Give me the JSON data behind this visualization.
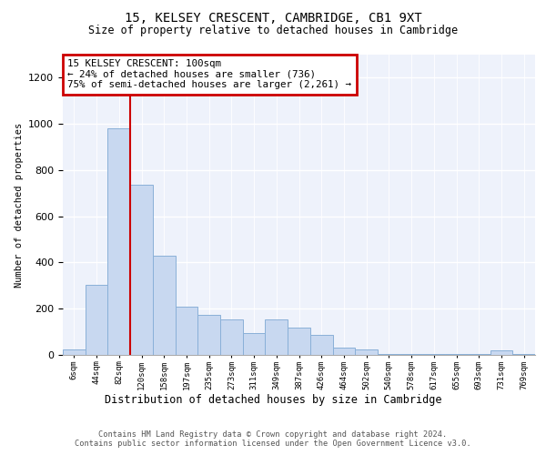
{
  "title": "15, KELSEY CRESCENT, CAMBRIDGE, CB1 9XT",
  "subtitle": "Size of property relative to detached houses in Cambridge",
  "xlabel": "Distribution of detached houses by size in Cambridge",
  "ylabel": "Number of detached properties",
  "bar_color": "#c8d8f0",
  "bar_edge_color": "#8ab0d8",
  "vline_color": "#cc0000",
  "vline_x_idx": 2,
  "annotation_text": "15 KELSEY CRESCENT: 100sqm\n← 24% of detached houses are smaller (736)\n75% of semi-detached houses are larger (2,261) →",
  "annotation_edge_color": "#cc0000",
  "categories": [
    "6sqm",
    "44sqm",
    "82sqm",
    "120sqm",
    "158sqm",
    "197sqm",
    "235sqm",
    "273sqm",
    "311sqm",
    "349sqm",
    "387sqm",
    "426sqm",
    "464sqm",
    "502sqm",
    "540sqm",
    "578sqm",
    "617sqm",
    "655sqm",
    "693sqm",
    "731sqm",
    "769sqm"
  ],
  "values": [
    22,
    305,
    980,
    735,
    430,
    210,
    175,
    155,
    95,
    155,
    120,
    88,
    30,
    22,
    5,
    3,
    3,
    2,
    2,
    20,
    2
  ],
  "ylim": [
    0,
    1300
  ],
  "yticks": [
    0,
    200,
    400,
    600,
    800,
    1000,
    1200
  ],
  "footer_line1": "Contains HM Land Registry data © Crown copyright and database right 2024.",
  "footer_line2": "Contains public sector information licensed under the Open Government Licence v3.0.",
  "bg_color": "#eef2fb"
}
